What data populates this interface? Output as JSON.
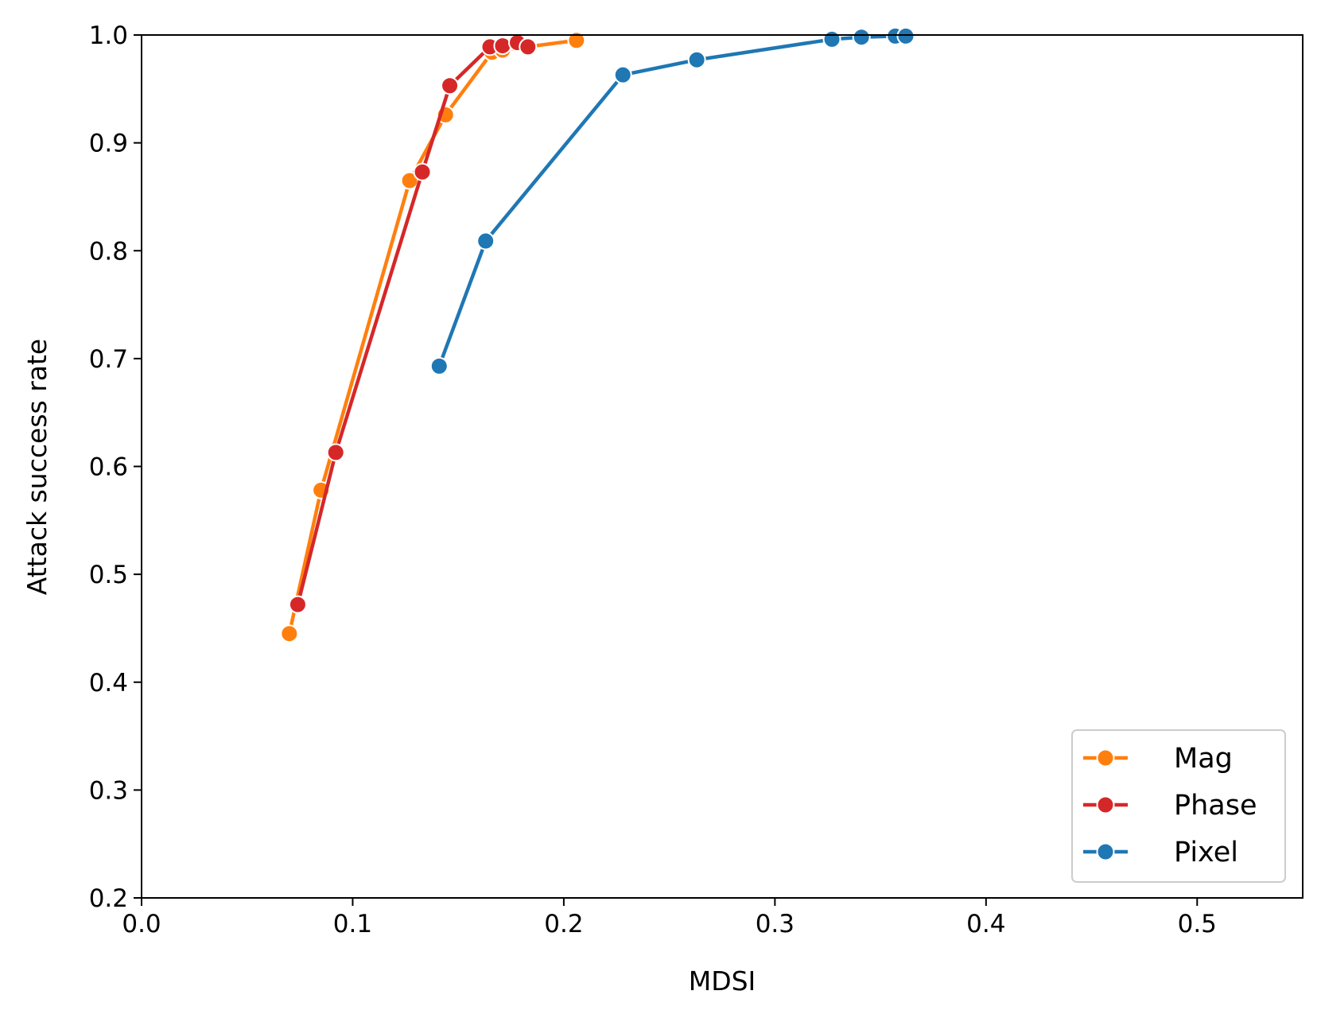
{
  "chart_data": {
    "type": "line",
    "title": "",
    "xlabel": "MDSI",
    "ylabel": "Attack success rate",
    "xlim": [
      0.0,
      0.55
    ],
    "ylim": [
      0.2,
      1.0
    ],
    "xticks": [
      0.0,
      0.1,
      0.2,
      0.3,
      0.4,
      0.5
    ],
    "xtick_labels": [
      "0.0",
      "0.1",
      "0.2",
      "0.3",
      "0.4",
      "0.5"
    ],
    "yticks": [
      0.2,
      0.3,
      0.4,
      0.5,
      0.6,
      0.7,
      0.8,
      0.9,
      1.0
    ],
    "ytick_labels": [
      "0.2",
      "0.3",
      "0.4",
      "0.5",
      "0.6",
      "0.7",
      "0.8",
      "0.9",
      "1.0"
    ],
    "grid": false,
    "legend_position": "lower-right",
    "series": [
      {
        "name": "Mag",
        "color": "#ff7f0e",
        "marker": "circle",
        "x": [
          0.07,
          0.085,
          0.127,
          0.144,
          0.166,
          0.171,
          0.206
        ],
        "y": [
          0.445,
          0.578,
          0.865,
          0.926,
          0.984,
          0.986,
          0.995
        ]
      },
      {
        "name": "Phase",
        "color": "#d62728",
        "marker": "circle",
        "x": [
          0.074,
          0.092,
          0.133,
          0.146,
          0.165,
          0.171,
          0.178,
          0.183
        ],
        "y": [
          0.472,
          0.613,
          0.873,
          0.953,
          0.989,
          0.99,
          0.993,
          0.989
        ]
      },
      {
        "name": "Pixel",
        "color": "#1f77b4",
        "marker": "circle",
        "x": [
          0.141,
          0.163,
          0.228,
          0.263,
          0.327,
          0.341,
          0.357,
          0.362
        ],
        "y": [
          0.693,
          0.809,
          0.963,
          0.977,
          0.996,
          0.998,
          0.999,
          0.999
        ]
      }
    ]
  }
}
